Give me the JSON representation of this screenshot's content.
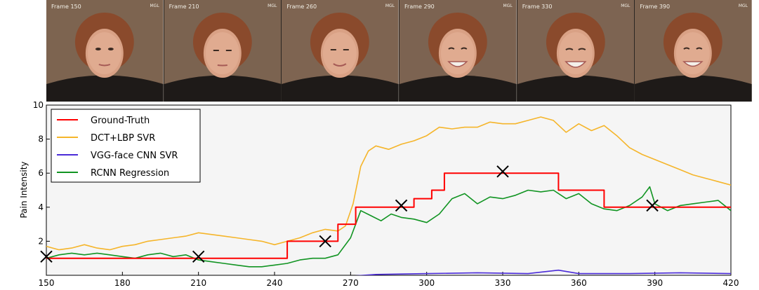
{
  "frames": [
    {
      "label": "Frame 150",
      "tag": "MGL"
    },
    {
      "label": "Frame 210",
      "tag": "MGL"
    },
    {
      "label": "Frame 260",
      "tag": "MGL"
    },
    {
      "label": "Frame 290",
      "tag": "MGL"
    },
    {
      "label": "Frame 330",
      "tag": "MGL"
    },
    {
      "label": "Frame 390",
      "tag": "MGL"
    }
  ],
  "chart_data": {
    "type": "line",
    "title": "",
    "xlabel": "",
    "ylabel": "Pain Intensity",
    "xlim": [
      150,
      420
    ],
    "ylim": [
      0,
      10
    ],
    "xticks": [
      150,
      180,
      210,
      240,
      270,
      300,
      330,
      360,
      390,
      420
    ],
    "yticks": [
      2,
      4,
      6,
      8,
      10
    ],
    "grid": false,
    "legend_position": "top-left",
    "series": [
      {
        "name": "Ground-Truth",
        "color": "#ff0000",
        "step": true,
        "points": [
          [
            150,
            1
          ],
          [
            245,
            1
          ],
          [
            245,
            2
          ],
          [
            265,
            2
          ],
          [
            265,
            3
          ],
          [
            272,
            3
          ],
          [
            272,
            4
          ],
          [
            295,
            4
          ],
          [
            295,
            4.5
          ],
          [
            302,
            4.5
          ],
          [
            302,
            5
          ],
          [
            307,
            5
          ],
          [
            307,
            6
          ],
          [
            352,
            6
          ],
          [
            352,
            5
          ],
          [
            370,
            5
          ],
          [
            370,
            4
          ],
          [
            420,
            4
          ]
        ]
      },
      {
        "name": "DCT+LBP SVR",
        "color": "#f5b52a",
        "points": [
          [
            150,
            1.7
          ],
          [
            155,
            1.5
          ],
          [
            160,
            1.6
          ],
          [
            165,
            1.8
          ],
          [
            170,
            1.6
          ],
          [
            175,
            1.5
          ],
          [
            180,
            1.7
          ],
          [
            185,
            1.8
          ],
          [
            190,
            2.0
          ],
          [
            195,
            2.1
          ],
          [
            200,
            2.2
          ],
          [
            205,
            2.3
          ],
          [
            210,
            2.5
          ],
          [
            215,
            2.4
          ],
          [
            220,
            2.3
          ],
          [
            225,
            2.2
          ],
          [
            230,
            2.1
          ],
          [
            235,
            2.0
          ],
          [
            240,
            1.8
          ],
          [
            245,
            2.0
          ],
          [
            250,
            2.2
          ],
          [
            255,
            2.5
          ],
          [
            260,
            2.7
          ],
          [
            265,
            2.6
          ],
          [
            268,
            2.9
          ],
          [
            271,
            4.2
          ],
          [
            274,
            6.4
          ],
          [
            277,
            7.3
          ],
          [
            280,
            7.6
          ],
          [
            285,
            7.4
          ],
          [
            290,
            7.7
          ],
          [
            295,
            7.9
          ],
          [
            300,
            8.2
          ],
          [
            305,
            8.7
          ],
          [
            310,
            8.6
          ],
          [
            315,
            8.7
          ],
          [
            320,
            8.7
          ],
          [
            325,
            9.0
          ],
          [
            330,
            8.9
          ],
          [
            335,
            8.9
          ],
          [
            340,
            9.1
          ],
          [
            345,
            9.3
          ],
          [
            350,
            9.1
          ],
          [
            355,
            8.4
          ],
          [
            360,
            8.9
          ],
          [
            365,
            8.5
          ],
          [
            370,
            8.8
          ],
          [
            375,
            8.2
          ],
          [
            380,
            7.5
          ],
          [
            385,
            7.1
          ],
          [
            390,
            6.8
          ],
          [
            395,
            6.5
          ],
          [
            400,
            6.2
          ],
          [
            405,
            5.9
          ],
          [
            410,
            5.7
          ],
          [
            415,
            5.5
          ],
          [
            420,
            5.3
          ]
        ]
      },
      {
        "name": "VGG-face CNN SVR",
        "color": "#4a2bd8",
        "points": [
          [
            150,
            -0.05
          ],
          [
            200,
            -0.05
          ],
          [
            270,
            -0.05
          ],
          [
            280,
            0.05
          ],
          [
            300,
            0.1
          ],
          [
            320,
            0.15
          ],
          [
            340,
            0.1
          ],
          [
            352,
            0.3
          ],
          [
            360,
            0.1
          ],
          [
            380,
            0.1
          ],
          [
            400,
            0.15
          ],
          [
            420,
            0.1
          ]
        ]
      },
      {
        "name": "RCNN Regression",
        "color": "#119422",
        "points": [
          [
            150,
            1.0
          ],
          [
            155,
            1.2
          ],
          [
            160,
            1.3
          ],
          [
            165,
            1.2
          ],
          [
            170,
            1.3
          ],
          [
            175,
            1.2
          ],
          [
            180,
            1.1
          ],
          [
            185,
            1.0
          ],
          [
            190,
            1.2
          ],
          [
            195,
            1.3
          ],
          [
            200,
            1.1
          ],
          [
            205,
            1.2
          ],
          [
            210,
            0.9
          ],
          [
            215,
            0.8
          ],
          [
            220,
            0.7
          ],
          [
            225,
            0.6
          ],
          [
            230,
            0.5
          ],
          [
            235,
            0.5
          ],
          [
            240,
            0.6
          ],
          [
            245,
            0.7
          ],
          [
            250,
            0.9
          ],
          [
            255,
            1.0
          ],
          [
            260,
            1.0
          ],
          [
            265,
            1.2
          ],
          [
            270,
            2.2
          ],
          [
            274,
            3.8
          ],
          [
            278,
            3.5
          ],
          [
            282,
            3.2
          ],
          [
            286,
            3.6
          ],
          [
            290,
            3.4
          ],
          [
            295,
            3.3
          ],
          [
            300,
            3.1
          ],
          [
            305,
            3.6
          ],
          [
            310,
            4.5
          ],
          [
            315,
            4.8
          ],
          [
            320,
            4.2
          ],
          [
            325,
            4.6
          ],
          [
            330,
            4.5
          ],
          [
            335,
            4.7
          ],
          [
            340,
            5.0
          ],
          [
            345,
            4.9
          ],
          [
            350,
            5.0
          ],
          [
            355,
            4.5
          ],
          [
            360,
            4.8
          ],
          [
            365,
            4.2
          ],
          [
            370,
            3.9
          ],
          [
            375,
            3.8
          ],
          [
            380,
            4.1
          ],
          [
            385,
            4.6
          ],
          [
            388,
            5.2
          ],
          [
            390,
            4.2
          ],
          [
            395,
            3.8
          ],
          [
            400,
            4.1
          ],
          [
            405,
            4.2
          ],
          [
            410,
            4.3
          ],
          [
            415,
            4.4
          ],
          [
            420,
            3.8
          ]
        ]
      }
    ],
    "markers": [
      [
        150,
        1.1
      ],
      [
        210,
        1.1
      ],
      [
        260,
        2.0
      ],
      [
        290,
        4.1
      ],
      [
        330,
        6.1
      ],
      [
        389,
        4.1
      ]
    ]
  }
}
